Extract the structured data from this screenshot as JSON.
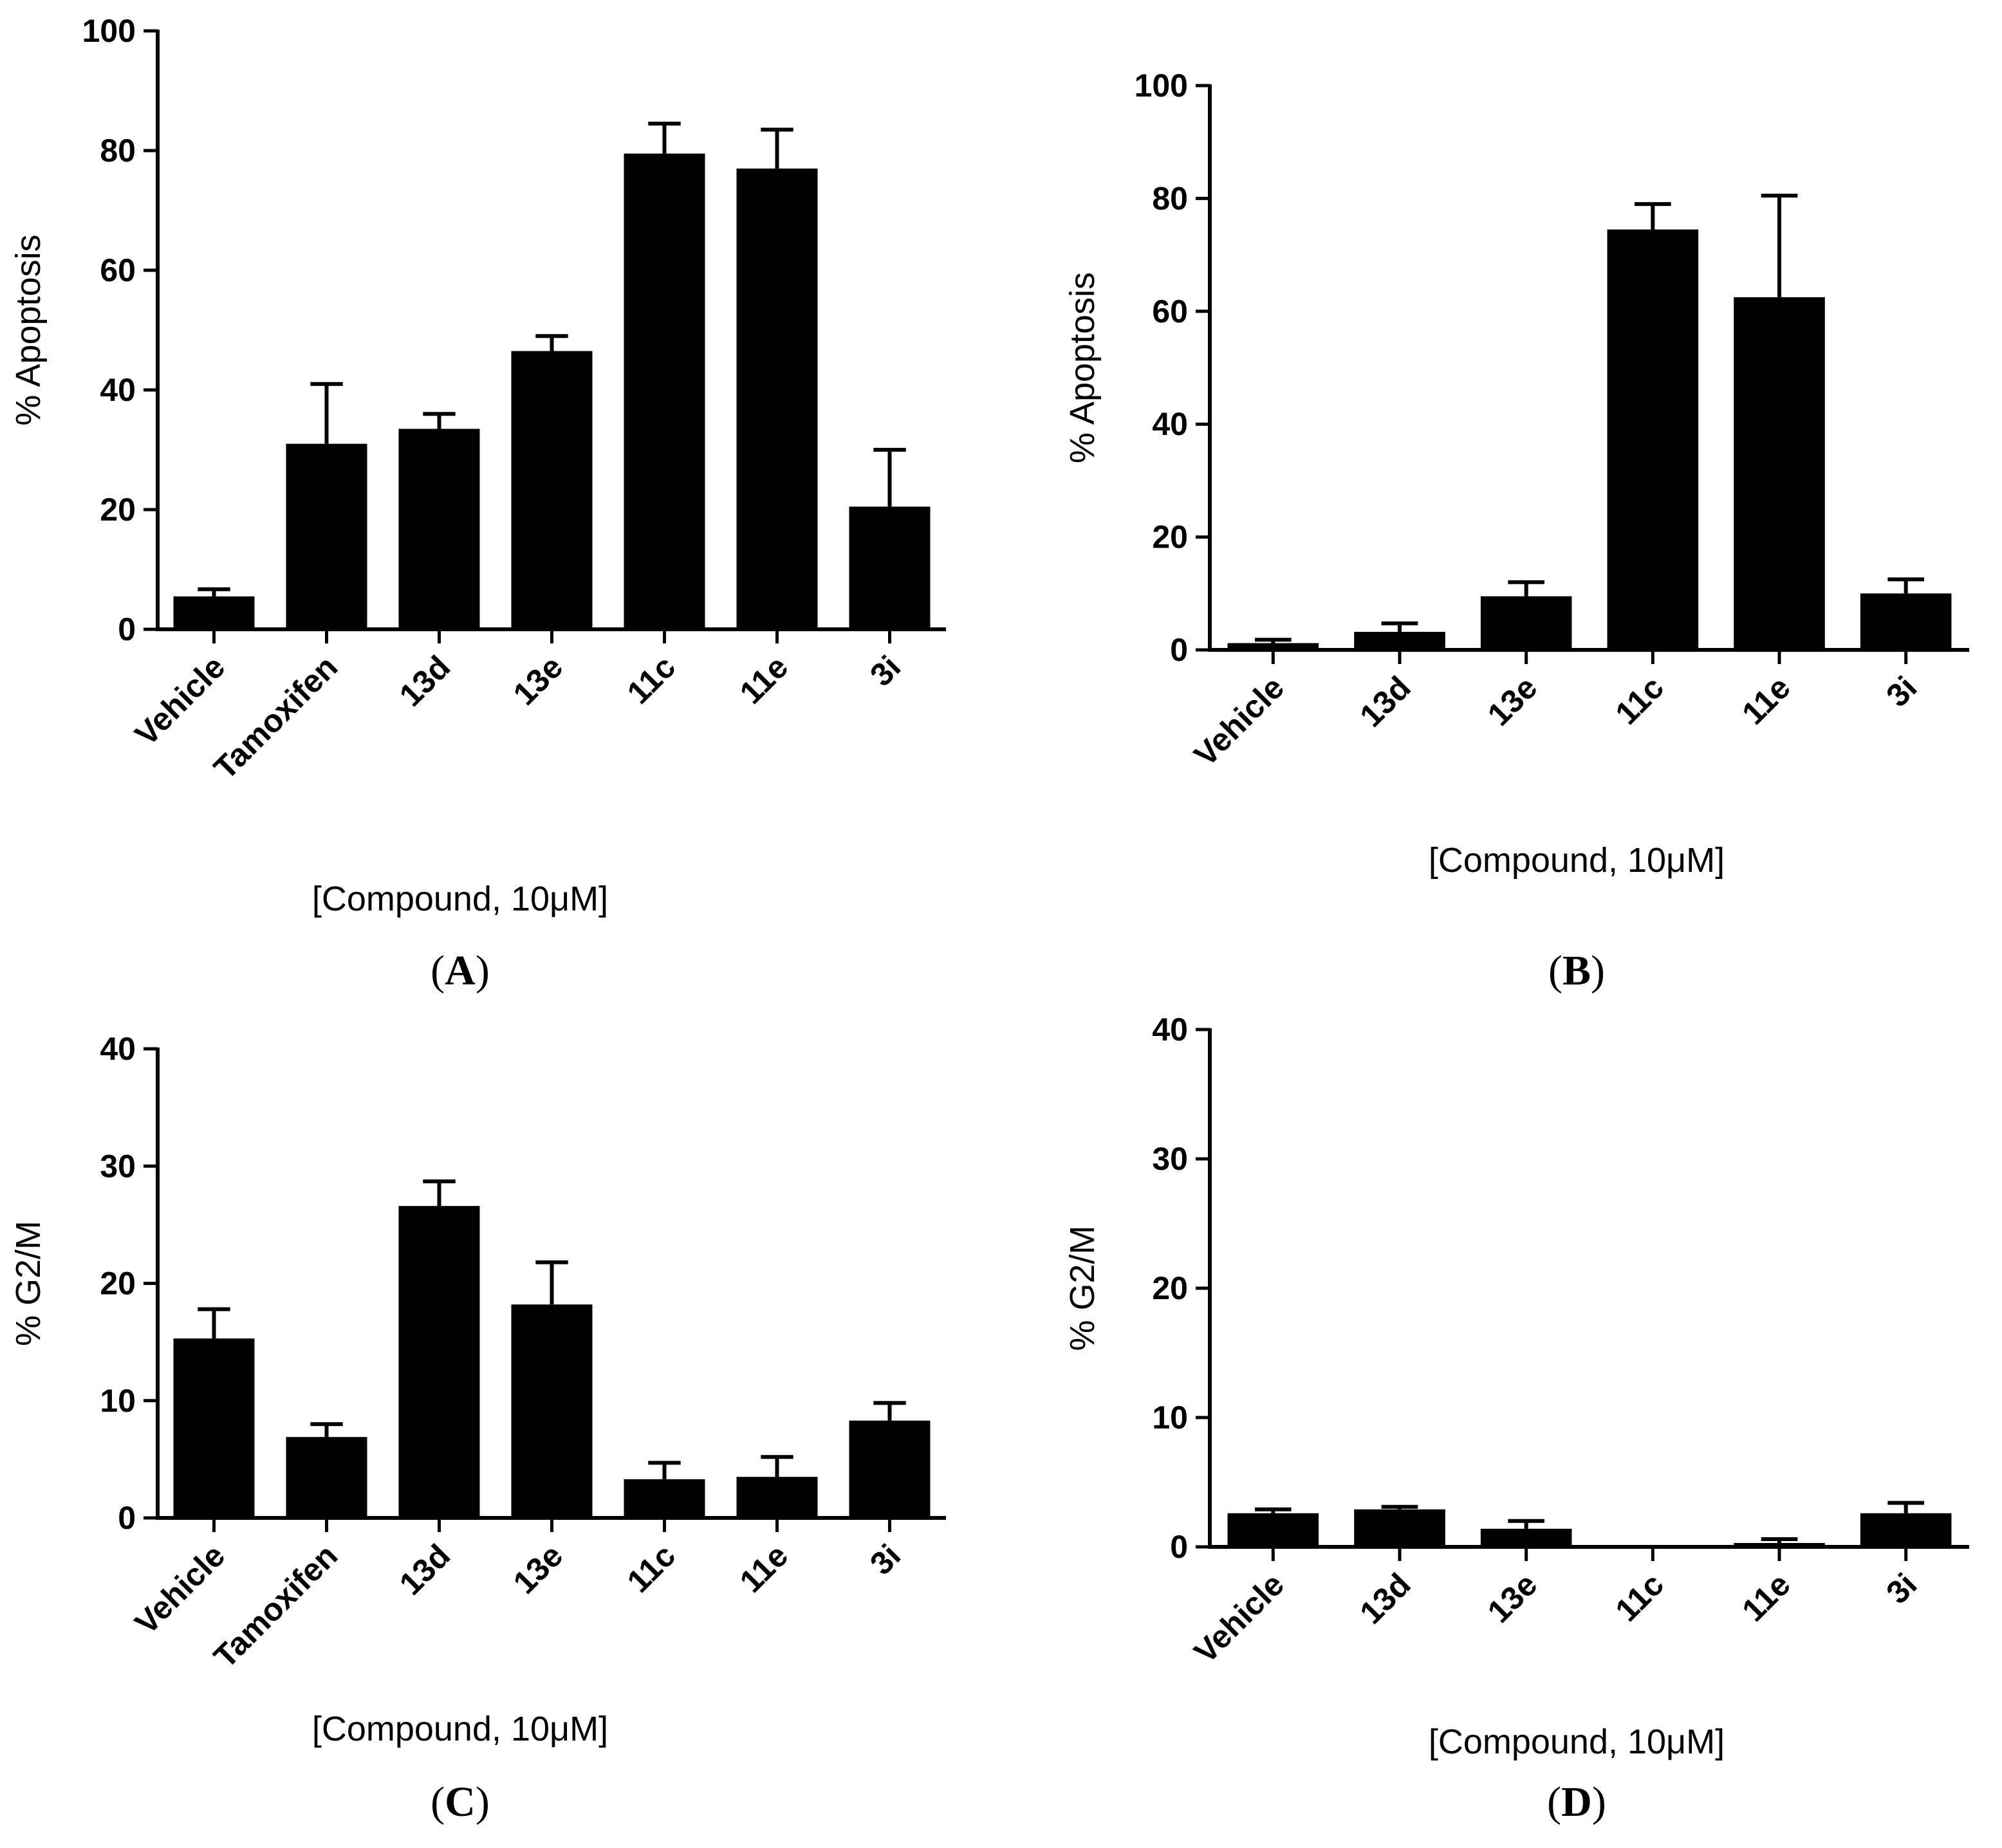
{
  "figure": {
    "bar_color": "#000000",
    "background": "#ffffff"
  },
  "chart_data": [
    {
      "panel": "A",
      "type": "bar",
      "title": "",
      "categories": [
        "Vehicle",
        "Tamoxifen",
        "13d",
        "13e",
        "11c",
        "11e",
        "3i"
      ],
      "values": [
        5.5,
        31,
        33.5,
        46.5,
        79.5,
        77,
        20.5
      ],
      "error": [
        1.2,
        10,
        2.5,
        2.5,
        5,
        6.5,
        9.5
      ],
      "ylim": [
        0,
        100
      ],
      "yticks": [
        0,
        20,
        40,
        60,
        80,
        100
      ],
      "xlabel": "[Compound, 10μM]",
      "ylabel": "% Apoptosis",
      "label_open": "(",
      "label_letter": "A",
      "label_close": ")"
    },
    {
      "panel": "B",
      "type": "bar",
      "title": "",
      "categories": [
        "Vehicle",
        "13d",
        "13e",
        "11c",
        "11e",
        "3i"
      ],
      "values": [
        1.2,
        3.2,
        9.5,
        74.5,
        62.5,
        10
      ],
      "error": [
        0.6,
        1.5,
        2.5,
        4.5,
        18,
        2.5
      ],
      "ylim": [
        0,
        100
      ],
      "yticks": [
        0,
        20,
        40,
        60,
        80,
        100
      ],
      "xlabel": "[Compound, 10μM]",
      "ylabel": "% Apoptosis",
      "label_open": "(",
      "label_letter": "B",
      "label_close": ")"
    },
    {
      "panel": "C",
      "type": "bar",
      "title": "",
      "categories": [
        "Vehicle",
        "Tamoxifen",
        "13d",
        "13e",
        "11c",
        "11e",
        "3i"
      ],
      "values": [
        15.3,
        6.9,
        26.6,
        18.2,
        3.3,
        3.5,
        8.3
      ],
      "error": [
        2.5,
        1.1,
        2.1,
        3.6,
        1.4,
        1.7,
        1.5
      ],
      "ylim": [
        0,
        40
      ],
      "yticks": [
        0,
        10,
        20,
        30,
        40
      ],
      "xlabel": "[Compound, 10μM]",
      "ylabel": "% G2/M",
      "label_open": "(",
      "label_letter": "C",
      "label_close": ")"
    },
    {
      "panel": "D",
      "type": "bar",
      "title": "",
      "categories": [
        "Vehicle",
        "13d",
        "13e",
        "11c",
        "11e",
        "3i"
      ],
      "values": [
        2.6,
        2.9,
        1.4,
        0.1,
        0.3,
        2.6
      ],
      "error": [
        0.3,
        0.2,
        0.6,
        0,
        0.3,
        0.8
      ],
      "ylim": [
        0,
        40
      ],
      "yticks": [
        0,
        10,
        20,
        30,
        40
      ],
      "xlabel": "[Compound, 10μM]",
      "ylabel": "% G2/M",
      "label_open": "(",
      "label_letter": "D",
      "label_close": ")"
    }
  ]
}
